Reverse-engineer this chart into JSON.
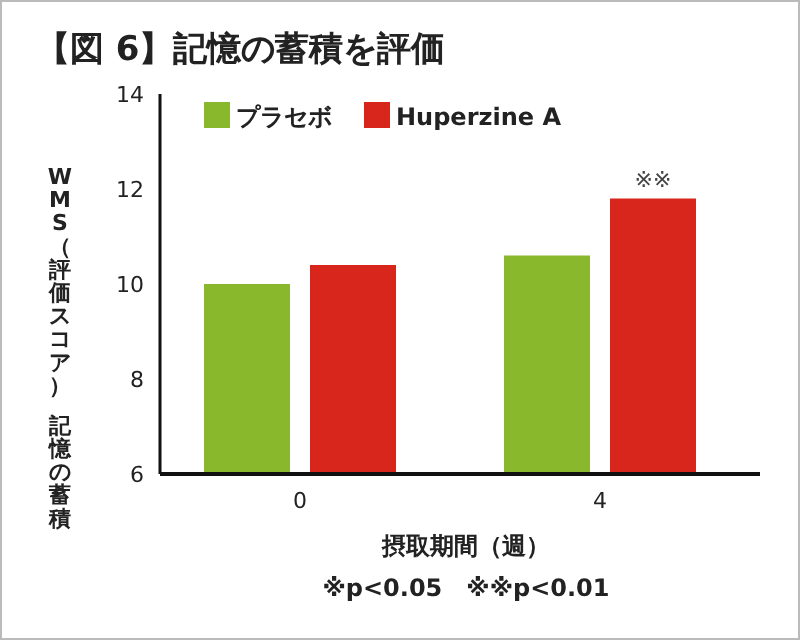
{
  "chart_data": {
    "type": "bar",
    "title": "【図 6】記憶の蓄積を評価",
    "xlabel": "摂取期間（週）",
    "ylabel": "WMS（評価スコア）記憶の蓄積",
    "categories": [
      "0",
      "4"
    ],
    "series": [
      {
        "name": "プラセボ",
        "color": "#8ab82c",
        "values": [
          10.0,
          10.6
        ]
      },
      {
        "name": "Huperzine A",
        "color": "#d9261c",
        "values": [
          10.4,
          11.8
        ]
      }
    ],
    "ylim": [
      6,
      14
    ],
    "yticks": [
      6,
      8,
      10,
      12,
      14
    ],
    "grid": false,
    "legend": "top left",
    "annotations": [
      {
        "text": "※※",
        "x": "4",
        "y": 11.8
      },
      "※p<0.05　※※p<0.01"
    ]
  }
}
